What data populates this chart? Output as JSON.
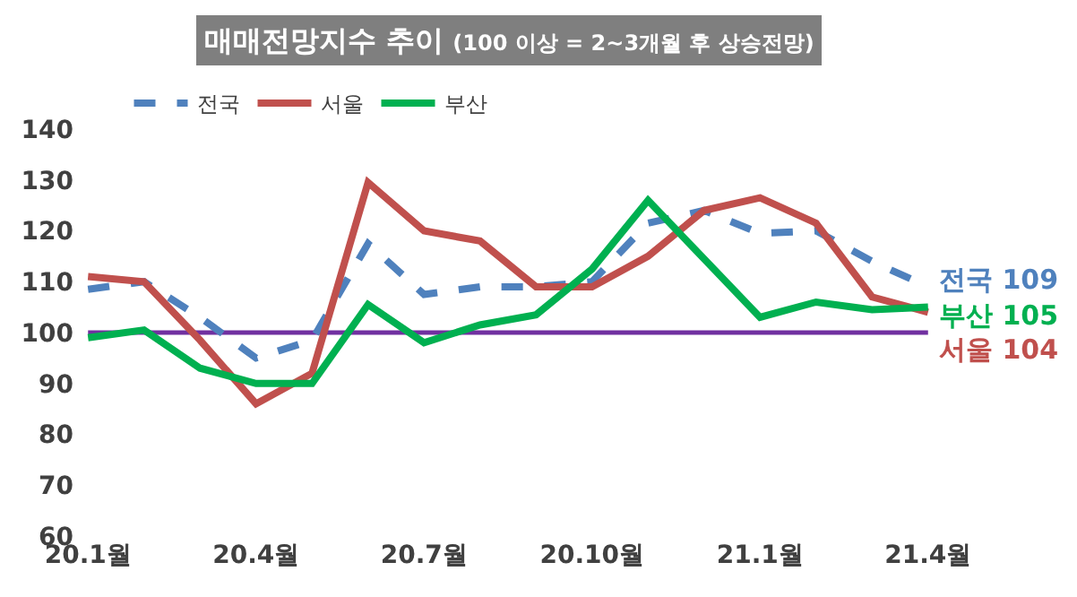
{
  "chart_data": {
    "type": "line",
    "title": "매매전망지수 추이",
    "subtitle": "(100 이상 = 2~3개월 후 상승전망)",
    "categories": [
      "20.1월",
      null,
      null,
      "20.4월",
      null,
      null,
      "20.7월",
      null,
      null,
      "20.10월",
      null,
      null,
      "21.1월",
      null,
      null,
      "21.4월"
    ],
    "series": [
      {
        "name": "전국",
        "color": "#4f81bd",
        "line_style": "dashed",
        "values": [
          108.5,
          110,
          103,
          95,
          98.5,
          117.5,
          107.5,
          109,
          109,
          110,
          121.5,
          124,
          119.5,
          120,
          114,
          109
        ]
      },
      {
        "name": "서울",
        "color": "#c0504d",
        "line_style": "solid",
        "values": [
          111,
          110,
          98.5,
          86,
          92,
          129.5,
          120,
          118,
          109,
          109,
          115,
          124,
          126.5,
          121.5,
          107,
          104
        ]
      },
      {
        "name": "부산",
        "color": "#00b050",
        "line_style": "solid",
        "values": [
          99,
          100.5,
          93,
          90,
          90,
          105.5,
          98,
          101.5,
          103.5,
          112.5,
          126,
          114.5,
          103,
          106,
          104.5,
          105
        ]
      }
    ],
    "annotations": [
      {
        "text": "전국 109",
        "x": "21.4월",
        "y": 109
      },
      {
        "text": "부산 105",
        "x": "21.4월",
        "y": 105
      },
      {
        "text": "서울 104",
        "x": "21.4월",
        "y": 104
      }
    ],
    "ylim": [
      60,
      140
    ],
    "yticks": [
      60,
      70,
      80,
      90,
      100,
      110,
      120,
      130,
      140
    ],
    "ref_lines": [
      {
        "axis": "y",
        "value": 100,
        "color": "#7030a0"
      }
    ],
    "grid": false,
    "legend": "top",
    "marker": "none"
  }
}
